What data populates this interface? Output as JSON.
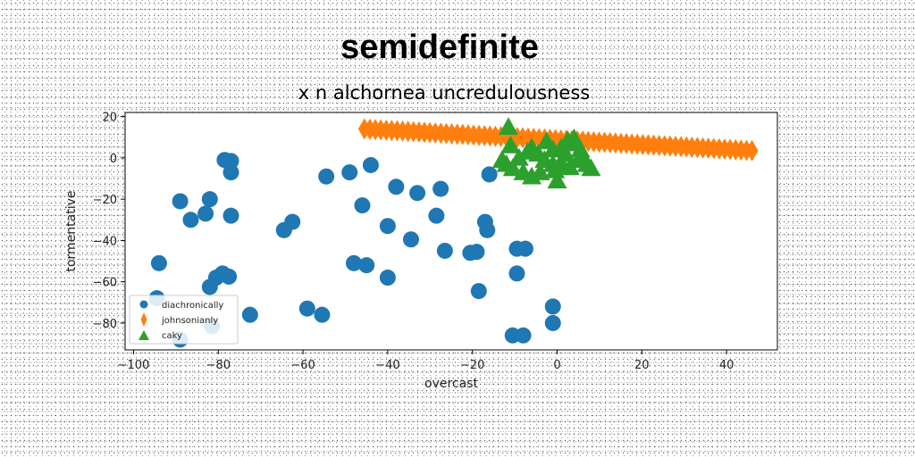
{
  "chart_data": {
    "type": "scatter",
    "title": "semidefinite",
    "subtitle": "x n alchornea uncredulousness",
    "xlabel": "overcast",
    "ylabel": "tormentative",
    "xlim": [
      -102,
      52
    ],
    "ylim": [
      -93,
      22
    ],
    "xticks": [
      -100,
      -80,
      -60,
      -40,
      -20,
      0,
      20,
      40
    ],
    "yticks": [
      20,
      0,
      -20,
      -40,
      -60,
      -80
    ],
    "x_tick_labels": [
      "−100",
      "−80",
      "−60",
      "−40",
      "−20",
      "0",
      "20",
      "40"
    ],
    "y_tick_labels": [
      "20",
      "0",
      "−20",
      "−40",
      "−60",
      "−80"
    ],
    "grid": false,
    "legend_position": "lower-left",
    "series": [
      {
        "name": "diachronically",
        "marker": "circle",
        "color": "#1f77b4",
        "points": [
          [
            -78.5,
            -1
          ],
          [
            -77,
            -1.5
          ],
          [
            -77,
            -7
          ],
          [
            -89,
            -21
          ],
          [
            -82,
            -20
          ],
          [
            -86.5,
            -30
          ],
          [
            -83,
            -27
          ],
          [
            -77,
            -28
          ],
          [
            -62.5,
            -31
          ],
          [
            -64.5,
            -35
          ],
          [
            -54.5,
            -9
          ],
          [
            -49,
            -7
          ],
          [
            -44,
            -3.5
          ],
          [
            -46,
            -23
          ],
          [
            -38,
            -14
          ],
          [
            -33,
            -17
          ],
          [
            -27.5,
            -15
          ],
          [
            -28.5,
            -28
          ],
          [
            -40,
            -33
          ],
          [
            -34.5,
            -39.5
          ],
          [
            -26.5,
            -45
          ],
          [
            -20.5,
            -46
          ],
          [
            -19,
            -45.5
          ],
          [
            -17,
            -31
          ],
          [
            -16.5,
            -35
          ],
          [
            -16,
            -8
          ],
          [
            -94,
            -51
          ],
          [
            -79,
            -56
          ],
          [
            -80.5,
            -58
          ],
          [
            -77.5,
            -57.5
          ],
          [
            -82,
            -62.5
          ],
          [
            -94.5,
            -68
          ],
          [
            -72.5,
            -76
          ],
          [
            -59,
            -73
          ],
          [
            -55.5,
            -76
          ],
          [
            -48,
            -51
          ],
          [
            -45,
            -52
          ],
          [
            -40,
            -58
          ],
          [
            -18.5,
            -64.5
          ],
          [
            -9.5,
            -56
          ],
          [
            -9.5,
            -44
          ],
          [
            -7.5,
            -44
          ],
          [
            -1,
            -72
          ],
          [
            -1,
            -80
          ],
          [
            -10.5,
            -86
          ],
          [
            -8,
            -86
          ],
          [
            -89,
            -88
          ],
          [
            -81.5,
            -81.5
          ]
        ]
      },
      {
        "name": "johnsonianly",
        "marker": "thin_diamond",
        "color": "#ff7f0e",
        "line_from": [
          -45.5,
          14
        ],
        "line_to": [
          46,
          3.5
        ],
        "count": 72
      },
      {
        "name": "caky",
        "marker": "triangle",
        "color": "#2ca02c",
        "points": [
          [
            -11.5,
            15
          ],
          [
            -11,
            6
          ],
          [
            -7,
            3
          ],
          [
            -2.5,
            8
          ],
          [
            2.5,
            8.5
          ],
          [
            4,
            9.5
          ],
          [
            -1,
            4
          ],
          [
            2,
            2
          ],
          [
            5.5,
            4
          ],
          [
            -4.5,
            2
          ],
          [
            -9,
            0
          ],
          [
            -13,
            -1
          ],
          [
            -10.5,
            -5
          ],
          [
            -8,
            -7
          ],
          [
            -4,
            -7
          ],
          [
            -1,
            -3
          ],
          [
            1,
            -2.5
          ],
          [
            3,
            -4.5
          ],
          [
            5,
            -1
          ],
          [
            7,
            -3
          ],
          [
            -6,
            -9
          ],
          [
            0,
            -11
          ],
          [
            8,
            -5
          ],
          [
            6,
            1
          ],
          [
            -3,
            -1
          ],
          [
            1,
            5
          ],
          [
            -6,
            5
          ],
          [
            -12,
            -3
          ],
          [
            3,
            7
          ],
          [
            -0.5,
            -6
          ]
        ]
      }
    ]
  }
}
